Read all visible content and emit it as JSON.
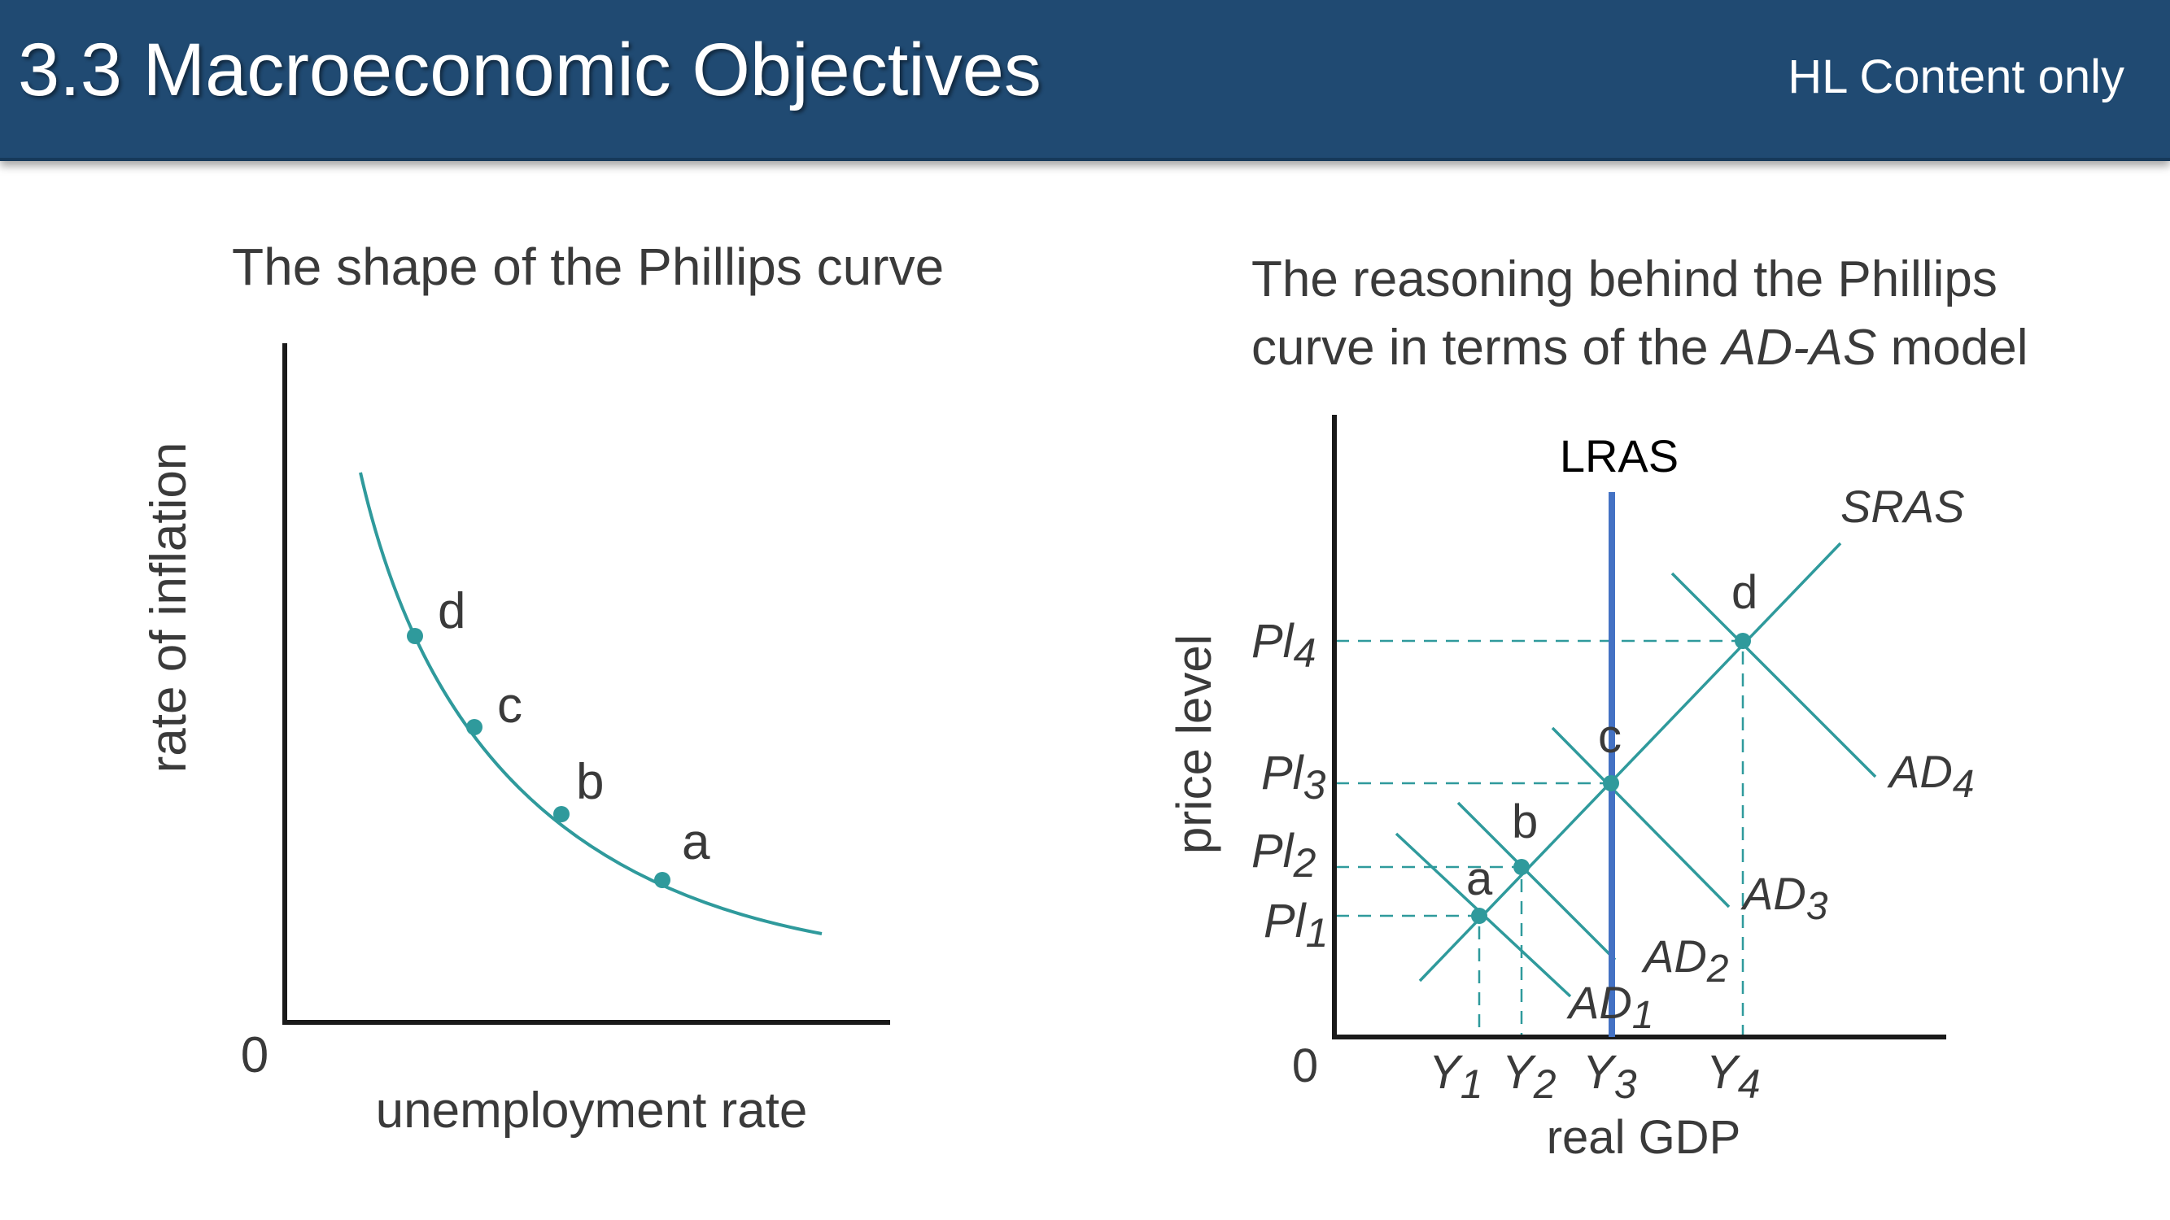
{
  "header": {
    "title": "3.3 Macroeconomic Objectives",
    "tag": "HL Content only"
  },
  "colors": {
    "header_bg": "#204a72",
    "curve": "#2f9a9c",
    "lras": "#4472c4",
    "axis": "#1a1a1a"
  },
  "phillips": {
    "title": "The shape of the Phillips curve",
    "ylabel": "rate of inflation",
    "xlabel": "unemployment rate",
    "origin": "0",
    "points": [
      "d",
      "c",
      "b",
      "a"
    ]
  },
  "adas": {
    "title_line1": "The reasoning behind the Phillips",
    "title_line2_pre": "curve in terms of the ",
    "title_line2_italic": "AD-AS",
    "title_line2_post": " model",
    "ylabel": "price level",
    "xlabel": "real GDP",
    "origin": "0",
    "lras_label": "LRAS",
    "sras_label": "SRAS",
    "price_label": "Pl",
    "output_label": "Y",
    "ad_label": "AD",
    "subscripts": [
      "1",
      "2",
      "3",
      "4"
    ],
    "points": [
      "a",
      "b",
      "c",
      "d"
    ]
  }
}
